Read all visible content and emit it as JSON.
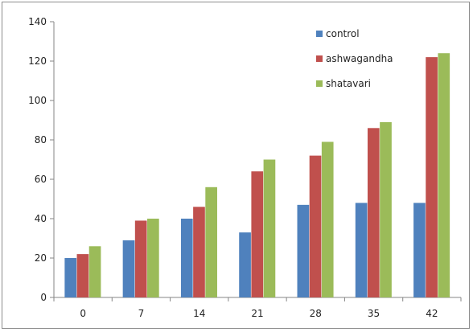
{
  "chart_data": {
    "type": "bar",
    "title": "",
    "xlabel": "",
    "ylabel": "",
    "categories": [
      "0",
      "7",
      "14",
      "21",
      "28",
      "35",
      "42"
    ],
    "series": [
      {
        "name": "control",
        "color": "#4F81BD",
        "values": [
          20,
          29,
          40,
          33,
          47,
          48,
          48
        ]
      },
      {
        "name": "ashwagandha",
        "color": "#C0504D",
        "values": [
          22,
          39,
          46,
          64,
          72,
          86,
          122
        ]
      },
      {
        "name": "shatavari",
        "color": "#9BBB59",
        "values": [
          26,
          40,
          56,
          70,
          79,
          89,
          124
        ]
      }
    ],
    "ylim": [
      0,
      140
    ],
    "yticks": [
      0,
      20,
      40,
      60,
      80,
      100,
      120,
      140
    ],
    "grid": false,
    "legend_position": "top-right"
  }
}
